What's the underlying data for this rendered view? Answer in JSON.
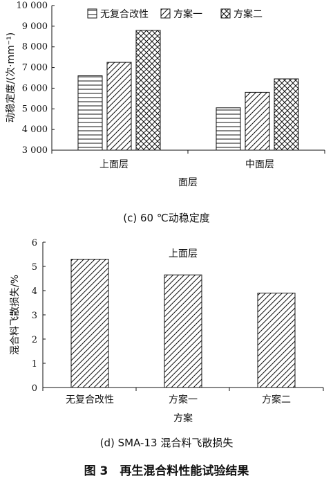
{
  "chart_data": [
    {
      "type": "bar",
      "ylabel": "动稳定度/(次·mm⁻¹)",
      "xlabel": "面层",
      "categories": [
        "上面层",
        "中面层"
      ],
      "series": [
        {
          "name": "无复合改性",
          "values": [
            6600,
            5050
          ]
        },
        {
          "name": "方案一",
          "values": [
            7250,
            5800
          ]
        },
        {
          "name": "方案二",
          "values": [
            8800,
            6450
          ]
        }
      ],
      "yticks": [
        "3 000",
        "4 000",
        "5 000",
        "6 000",
        "7 000",
        "8 000",
        "9 000",
        "10 000"
      ],
      "ylim": [
        3000,
        10000
      ],
      "legend": "top",
      "caption": "(c) 60 ℃动稳定度"
    },
    {
      "type": "bar",
      "ylabel": "混合料飞散损失/%",
      "xlabel": "方案",
      "annotation": "上面层",
      "categories": [
        "无复合改性",
        "方案一",
        "方案二"
      ],
      "values": [
        5.3,
        4.65,
        3.9
      ],
      "yticks": [
        "0",
        "1",
        "2",
        "3",
        "4",
        "5",
        "6"
      ],
      "ylim": [
        0,
        6
      ],
      "caption": "(d) SMA-13 混合料飞散损失"
    }
  ],
  "figure_title": "图 3　再生混合料性能试验结果"
}
